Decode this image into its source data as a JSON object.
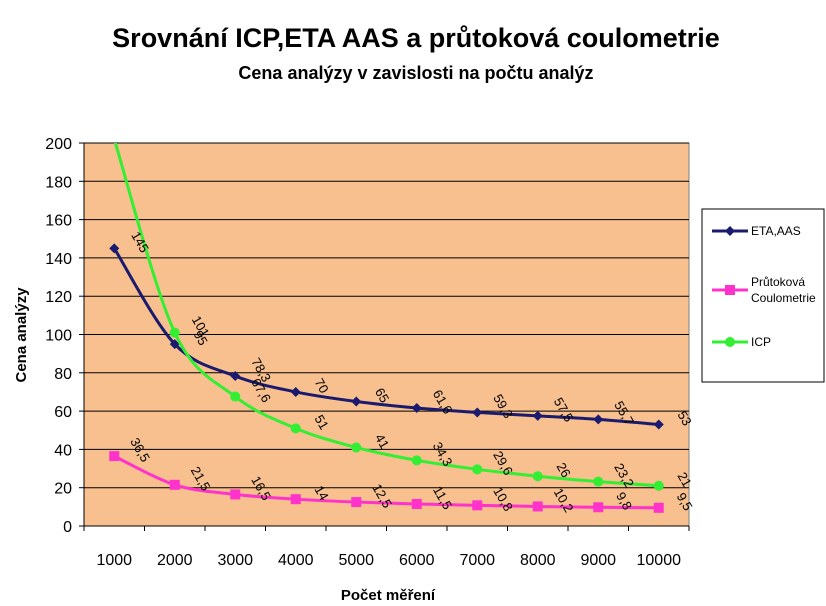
{
  "chart_data": {
    "type": "line",
    "title": "Srovnání ICP,ETA AAS a průtoková coulometrie",
    "subtitle": "Cena analýzy v zavislosti na počtu analýz",
    "xlabel": "Počet měření",
    "ylabel": "Cena analýzy",
    "categories": [
      "1000",
      "2000",
      "3000",
      "4000",
      "5000",
      "6000",
      "7000",
      "8000",
      "9000",
      "10000"
    ],
    "ylim": [
      0,
      200
    ],
    "yticks": [
      "0",
      "20",
      "40",
      "60",
      "80",
      "100",
      "120",
      "140",
      "160",
      "180",
      "200"
    ],
    "grid": true,
    "legend_position": "right",
    "series": [
      {
        "name": "ETA,AAS",
        "color": "#1a1a6e",
        "marker": "diamond",
        "values": [
          145,
          95,
          78.3,
          70,
          65,
          61.6,
          59.3,
          57.5,
          55.7,
          53
        ],
        "labels": [
          "145",
          "95",
          "78,3",
          "70",
          "65",
          "61,6",
          "59,3",
          "57,5",
          "55,7",
          "53"
        ]
      },
      {
        "name": "Průtoková Coulometrie",
        "color": "#ff33cc",
        "marker": "square",
        "values": [
          36.5,
          21.5,
          16.5,
          14,
          12.5,
          11.5,
          10.8,
          10.2,
          9.8,
          9.5
        ],
        "labels": [
          "36,5",
          "21,5",
          "16,5",
          "14",
          "12,5",
          "11,5",
          "10,8",
          "10,2",
          "9,8",
          "9,5"
        ]
      },
      {
        "name": "ICP",
        "color": "#33ee33",
        "marker": "circle",
        "values": [
          202,
          101,
          67.6,
          51,
          41,
          34.3,
          29.6,
          26,
          23.2,
          21
        ],
        "labels": [
          "",
          "101",
          "67,6",
          "51",
          "41",
          "34,3",
          "29,6",
          "26",
          "23,2",
          "21"
        ]
      }
    ],
    "colors": {
      "plot_background": "#f7c08e",
      "grid": "#000000"
    }
  },
  "legend": {
    "items": [
      {
        "lines": [
          "ETA,AAS"
        ]
      },
      {
        "lines": [
          "Průtoková",
          "Coulometrie"
        ]
      },
      {
        "lines": [
          "ICP"
        ]
      }
    ]
  }
}
